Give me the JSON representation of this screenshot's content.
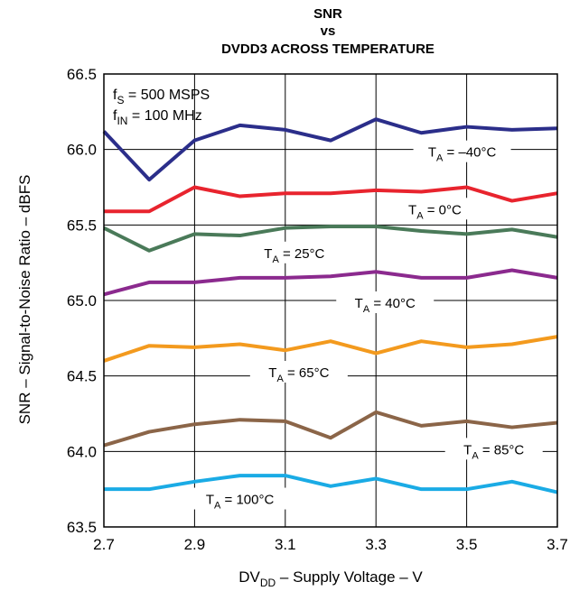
{
  "chart_data": {
    "type": "line",
    "title": "SNR",
    "title_line2": "vs",
    "title_line3": "DVDD3 ACROSS TEMPERATURE",
    "xlabel": {
      "main": "DV",
      "sub": "DD",
      "rest": " – Supply Voltage – V"
    },
    "ylabel": "SNR – Signal-to-Noise Ratio – dBFS",
    "xlim": [
      2.7,
      3.7
    ],
    "ylim": [
      63.5,
      66.5
    ],
    "grid": true,
    "xticks": [
      "2.7",
      "2.9",
      "3.1",
      "3.3",
      "3.5",
      "3.7"
    ],
    "yticks": [
      "63.5",
      "64.0",
      "64.5",
      "65.0",
      "65.5",
      "66.0",
      "66.5"
    ],
    "annotations": [
      {
        "main": "f",
        "sub": "S",
        "rest": " = 500 MSPS"
      },
      {
        "main": "f",
        "sub": "IN",
        "rest": " = 100 MHz"
      }
    ],
    "x": [
      2.7,
      2.8,
      2.9,
      3.0,
      3.1,
      3.2,
      3.3,
      3.4,
      3.5,
      3.6,
      3.7
    ],
    "series": [
      {
        "name": "T_A = −40°C",
        "label": {
          "main": "T",
          "sub": "A",
          "rest": " = –40°C"
        },
        "color": "#2b2e8a",
        "values": [
          66.12,
          65.8,
          66.06,
          66.16,
          66.13,
          66.06,
          66.2,
          66.11,
          66.15,
          66.13,
          66.14
        ]
      },
      {
        "name": "T_A = 0°C",
        "label": {
          "main": "T",
          "sub": "A",
          "rest": " = 0°C"
        },
        "color": "#e8242e",
        "values": [
          65.59,
          65.59,
          65.75,
          65.69,
          65.71,
          65.71,
          65.73,
          65.72,
          65.75,
          65.66,
          65.71
        ]
      },
      {
        "name": "T_A = 25°C",
        "label": {
          "main": "T",
          "sub": "A",
          "rest": " = 25°C"
        },
        "color": "#4a7a59",
        "values": [
          65.48,
          65.33,
          65.44,
          65.43,
          65.48,
          65.49,
          65.49,
          65.46,
          65.44,
          65.47,
          65.42
        ]
      },
      {
        "name": "T_A = 40°C",
        "label": {
          "main": "T",
          "sub": "A",
          "rest": " = 40°C"
        },
        "color": "#8b2a8e",
        "values": [
          65.04,
          65.12,
          65.12,
          65.15,
          65.15,
          65.16,
          65.19,
          65.15,
          65.15,
          65.2,
          65.15
        ]
      },
      {
        "name": "T_A = 65°C",
        "label": {
          "main": "T",
          "sub": "A",
          "rest": " = 65°C"
        },
        "color": "#f39a1e",
        "values": [
          64.6,
          64.7,
          64.69,
          64.71,
          64.67,
          64.73,
          64.65,
          64.73,
          64.69,
          64.71,
          64.76
        ]
      },
      {
        "name": "T_A = 85°C",
        "label": {
          "main": "T",
          "sub": "A",
          "rest": " = 85°C"
        },
        "color": "#8b6548",
        "values": [
          64.04,
          64.13,
          64.18,
          64.21,
          64.2,
          64.09,
          64.26,
          64.17,
          64.2,
          64.16,
          64.19
        ]
      },
      {
        "name": "T_A = 100°C",
        "label": {
          "main": "T",
          "sub": "A",
          "rest": " = 100°C"
        },
        "color": "#1aabe5",
        "values": [
          63.75,
          63.75,
          63.8,
          63.84,
          63.84,
          63.77,
          63.82,
          63.75,
          63.75,
          63.8,
          63.73
        ]
      }
    ]
  }
}
